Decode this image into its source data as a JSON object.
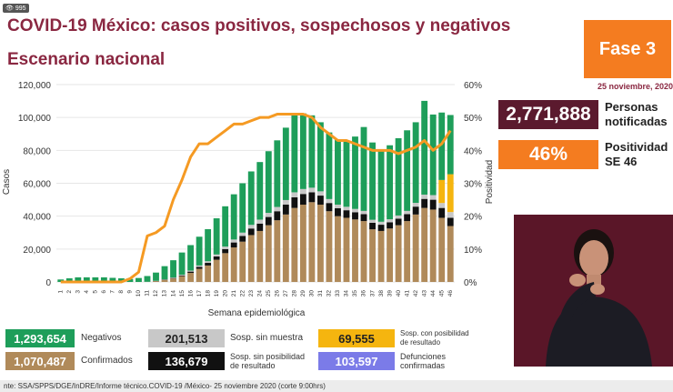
{
  "header": {
    "title": "COVID-19 México: casos positivos, sospechosos y negativos",
    "subtitle": "Escenario nacional",
    "views_badge": "995",
    "phase": "Fase 3",
    "date": "25 noviembre, 2020"
  },
  "kpis": [
    {
      "value": "2,771,888",
      "label_line1": "Personas",
      "label_line2": "notificadas",
      "color": "#5b1a2e"
    },
    {
      "value": "46%",
      "label_line1": "Positividad",
      "label_line2": "SE 46",
      "color": "#f47c20"
    }
  ],
  "stats": {
    "negativos": {
      "value": "1,293,654",
      "label": "Negativos",
      "color": "#1e9e5a"
    },
    "confirmados": {
      "value": "1,070,487",
      "label": "Confirmados",
      "color": "#b08a5a"
    },
    "sin_muestra": {
      "value": "201,513",
      "label": "Sosp. sin muestra",
      "color": "#c8c8c8"
    },
    "sin_posibilidad": {
      "value": "136,679",
      "label_line1": "Sosp. sin posibilidad",
      "label_line2": "de resultado",
      "color": "#111111"
    },
    "con_posibilidad": {
      "value": "69,555",
      "label_line1": "Sosp. con posibilidad",
      "label_line2": "de resultado",
      "color": "#f5b50f"
    },
    "defunciones": {
      "value": "103,597",
      "label_line1": "Defunciones",
      "label_line2": "confirmadas",
      "color": "#7b7be8"
    }
  },
  "footer": "nte: SSA/SPPS/DGE/InDRE/Informe técnico.COVID-19 /México- 25 noviembre 2020 (corte 9:00hrs)",
  "chart_data": {
    "type": "bar",
    "stacked": true,
    "xlabel": "Semana epidemiológica",
    "ylabel": "Casos",
    "y2label": "Positividad",
    "ylim": [
      0,
      120000
    ],
    "y2lim": [
      0,
      60
    ],
    "yticks": [
      "0",
      "20,000",
      "40,000",
      "60,000",
      "80,000",
      "100,000",
      "120,000"
    ],
    "y2ticks": [
      "0%",
      "10%",
      "20%",
      "30%",
      "40%",
      "50%",
      "60%"
    ],
    "categories": [
      "1",
      "2",
      "3",
      "4",
      "5",
      "6",
      "7",
      "8",
      "9",
      "10",
      "11",
      "12",
      "13",
      "14",
      "15",
      "16",
      "17",
      "18",
      "19",
      "20",
      "21",
      "22",
      "23",
      "24",
      "25",
      "26",
      "27",
      "28",
      "29",
      "30",
      "31",
      "32",
      "33",
      "34",
      "35",
      "36",
      "37",
      "38",
      "39",
      "40",
      "41",
      "42",
      "43",
      "44",
      "45",
      "46"
    ],
    "series": [
      {
        "name": "Confirmados",
        "color": "#b08a5a",
        "values": [
          0,
          0,
          0,
          0,
          0,
          0,
          0,
          0,
          0,
          0,
          100,
          500,
          1200,
          2100,
          3500,
          5500,
          8000,
          10000,
          13500,
          17500,
          21000,
          24500,
          28500,
          31000,
          34500,
          37500,
          41000,
          45000,
          47000,
          48500,
          47000,
          43000,
          40000,
          39000,
          38000,
          37000,
          32000,
          31000,
          32500,
          34500,
          37000,
          41000,
          45000,
          44000,
          39000,
          34000
        ]
      },
      {
        "name": "Sosp. sin posibilidad de resultado",
        "color": "#111111",
        "values": [
          0,
          0,
          0,
          0,
          0,
          0,
          0,
          0,
          0,
          0,
          0,
          100,
          200,
          300,
          500,
          800,
          1200,
          1600,
          2000,
          2500,
          3000,
          3500,
          4000,
          4500,
          5000,
          5500,
          6000,
          6500,
          6500,
          6000,
          5500,
          5000,
          4800,
          4600,
          4400,
          4200,
          4000,
          3800,
          3800,
          4000,
          4200,
          4800,
          5500,
          6000,
          6000,
          5000
        ]
      },
      {
        "name": "Sosp. sin muestra",
        "color": "#c8c8c8",
        "values": [
          0,
          0,
          0,
          0,
          0,
          0,
          0,
          0,
          0,
          0,
          0,
          100,
          200,
          300,
          400,
          600,
          800,
          1000,
          1200,
          1500,
          1800,
          2000,
          2200,
          2400,
          2500,
          2600,
          2800,
          3000,
          3000,
          2800,
          2600,
          2400,
          2200,
          2100,
          2000,
          2000,
          1800,
          1800,
          1800,
          1900,
          2000,
          2300,
          2600,
          2800,
          3000,
          3500
        ]
      },
      {
        "name": "Sosp. con posibilidad de resultado",
        "color": "#f5b50f",
        "values": [
          0,
          0,
          0,
          0,
          0,
          0,
          0,
          0,
          0,
          0,
          0,
          0,
          0,
          0,
          0,
          0,
          0,
          0,
          0,
          0,
          0,
          0,
          0,
          0,
          0,
          0,
          0,
          0,
          0,
          0,
          0,
          0,
          0,
          0,
          0,
          0,
          0,
          0,
          0,
          0,
          0,
          0,
          0,
          0,
          14000,
          23000
        ]
      },
      {
        "name": "Negativos",
        "color": "#1e9e5a",
        "values": [
          1500,
          2200,
          2800,
          2800,
          2800,
          2800,
          2500,
          2200,
          1800,
          2400,
          3500,
          5000,
          8000,
          10500,
          13500,
          15500,
          17500,
          19500,
          22000,
          24500,
          27500,
          30000,
          32500,
          35000,
          37500,
          40500,
          44000,
          47500,
          46000,
          44000,
          42000,
          40500,
          39500,
          40000,
          44000,
          51000,
          47000,
          43000,
          45000,
          47000,
          49000,
          49000,
          57000,
          49000,
          41000,
          36000
        ]
      }
    ],
    "line": {
      "name": "Positividad",
      "color": "#f59a23",
      "values": [
        0,
        0,
        0,
        0,
        0,
        0,
        0,
        0,
        1,
        3,
        14,
        15,
        17,
        25,
        31,
        38,
        42,
        42,
        44,
        46,
        48,
        48,
        49,
        50,
        50,
        51,
        51,
        51,
        51,
        50,
        47,
        45,
        43,
        43,
        42,
        41,
        40,
        40,
        40,
        39,
        40,
        41,
        43,
        40,
        42,
        46
      ]
    }
  }
}
